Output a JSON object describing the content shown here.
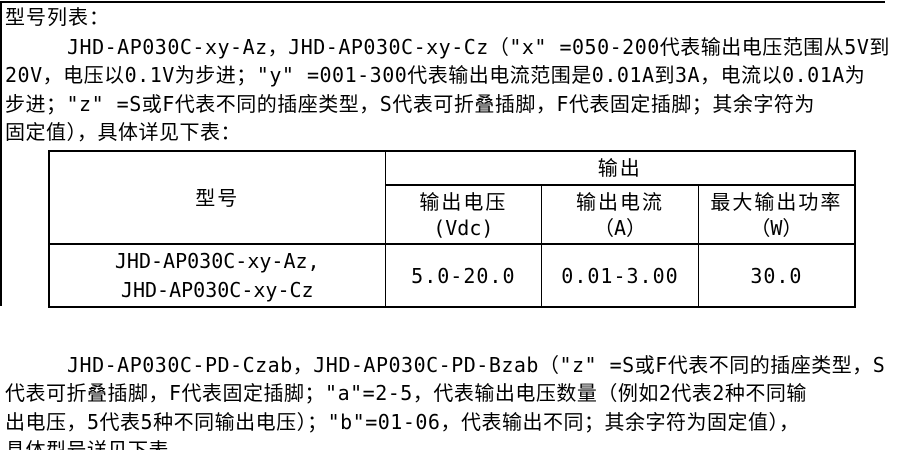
{
  "title": "型号列表：",
  "para1": {
    "lines": [
      "JHD-AP030C-xy-Az，JHD-AP030C-xy-Cz（\"x\" =050-200代表输出电压范围从5V到",
      "20V，电压以0.1V为步进；\"y\" =001-300代表输出电流范围是0.01A到3A，电流以0.01A为",
      "步进；\"z\" =S或F代表不同的插座类型，S代表可折叠插脚，F代表固定插脚；其余字符为",
      "固定值），具体详见下表："
    ]
  },
  "table": {
    "model_header": "型号",
    "output_group_header": "输出",
    "columns": [
      {
        "name": "输出电压",
        "unit": "(Vdc)"
      },
      {
        "name": "输出电流",
        "unit": "（A）"
      },
      {
        "name": "最大输出功率",
        "unit": "（W）"
      }
    ],
    "row": {
      "model_line1": "JHD-AP030C-xy-Az,",
      "model_line2": "JHD-AP030C-xy-Cz",
      "output_voltage": "5.0-20.0",
      "output_current": "0.01-3.00",
      "max_output_power": "30.0"
    }
  },
  "para2": {
    "lines": [
      "JHD-AP030C-PD-Czab，JHD-AP030C-PD-Bzab（\"z\" =S或F代表不同的插座类型，S",
      "代表可折叠插脚，F代表固定插脚；\"a\"=2-5，代表输出电压数量（例如2代表2种不同输",
      "出电压，5代表5种不同输出电压）；\"b\"=01-06，代表输出不同；其余字符为固定值），",
      "具体型号详见下表"
    ]
  },
  "colors": {
    "text": "#000000",
    "border": "#000000",
    "background": "#ffffff"
  }
}
